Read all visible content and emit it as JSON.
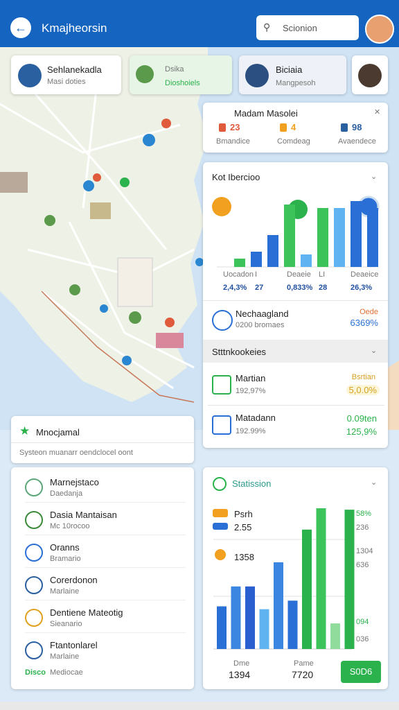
{
  "app_bar": {
    "title": "Kmajheorsin",
    "search": "Scionion"
  },
  "top_cards": [
    {
      "title": "Sehlanekadla",
      "subtitle": "Masi doties"
    },
    {
      "title": "Dsika",
      "subtitle": "Dioshoiels"
    },
    {
      "title": "Biciaia",
      "subtitle": "Mangpesoh"
    }
  ],
  "summary_card": {
    "title": "Madam Masolei",
    "stats": [
      {
        "value": "23",
        "label": "Bmandice"
      },
      {
        "value": "4",
        "label": "Comdeag"
      },
      {
        "value": "98",
        "label": "Avaendece"
      }
    ]
  },
  "kpi_card": {
    "title": "Kot Ibercioo",
    "bars": [
      {
        "value": 12,
        "color": "#3cc35a"
      },
      {
        "value": 22,
        "color": "#2a6fd6"
      },
      {
        "value": 46,
        "color": "#2a6fd6"
      },
      {
        "value": 90,
        "color": "#3cc35a"
      },
      {
        "value": 18,
        "color": "#5fb3f0"
      },
      {
        "value": 85,
        "color": "#3cc35a"
      },
      {
        "value": 85,
        "color": "#5fb3f0"
      },
      {
        "value": 95,
        "color": "#2a6fd6"
      },
      {
        "value": 85,
        "color": "#2a6fd6"
      }
    ],
    "columns": [
      {
        "label": "Uocadon",
        "value": "2,4,3%"
      },
      {
        "label": "I",
        "value": "27"
      },
      {
        "label": "Deaeie",
        "value": "0,833%"
      },
      {
        "label": "LI",
        "value": "28"
      },
      {
        "label": "Deaeice",
        "value": "26,3%"
      }
    ],
    "highlight": {
      "title": "Nechaagland",
      "subtitle": "0200 bromaes",
      "tag": "Oede",
      "value": "6369%"
    },
    "section_title": "Stttnkookeies",
    "rows": [
      {
        "title": "Martian",
        "subtitle": "192,97%",
        "tag": "Bsrtian",
        "value": "5,0.0%"
      },
      {
        "title": "Matadann",
        "subtitle": "192.99%",
        "tag": "0.09ten",
        "value": "125,9%"
      }
    ]
  },
  "left_panel": {
    "title": "Mnocjamal",
    "subtitle": "Systeon muanarr oendclocel oont",
    "items": [
      {
        "title": "Marnejstaco",
        "subtitle": "Daedanja"
      },
      {
        "title": "Dasia Mantaisan",
        "subtitle": "Mc 10rocoo"
      },
      {
        "title": "Oranns",
        "subtitle": "Bramario"
      },
      {
        "title": "Corerdonon",
        "subtitle": "Marlaine"
      },
      {
        "title": "Dentiene Mateotig",
        "subtitle": "Sieanario"
      },
      {
        "title": "Ftantonlarel",
        "subtitle": "Marlaine"
      }
    ],
    "footer": {
      "tag": "Disco",
      "text": "Mediocae"
    }
  },
  "stats_card": {
    "title": "Statission",
    "left_labels": [
      "Psrh",
      "2.55",
      "1358"
    ],
    "right_labels": [
      "58%",
      "236",
      "1304",
      "636",
      "094",
      "036"
    ],
    "bars": [
      {
        "value": 30,
        "color": "#2a6fd6"
      },
      {
        "value": 44,
        "color": "#3a86e0"
      },
      {
        "value": 44,
        "color": "#2a5fd0"
      },
      {
        "value": 28,
        "color": "#5fb3f0"
      },
      {
        "value": 61,
        "color": "#3a86e0"
      },
      {
        "value": 34,
        "color": "#2a6fd6"
      },
      {
        "value": 84,
        "color": "#2bb24c"
      },
      {
        "value": 99,
        "color": "#3cc35a"
      },
      {
        "value": 18,
        "color": "#8fdc9c"
      },
      {
        "value": 98,
        "color": "#2bb24c"
      }
    ],
    "footer": [
      {
        "label": "Dme",
        "value": "1394"
      },
      {
        "label": "Pame",
        "value": "7720"
      }
    ],
    "button": "S0D6"
  }
}
